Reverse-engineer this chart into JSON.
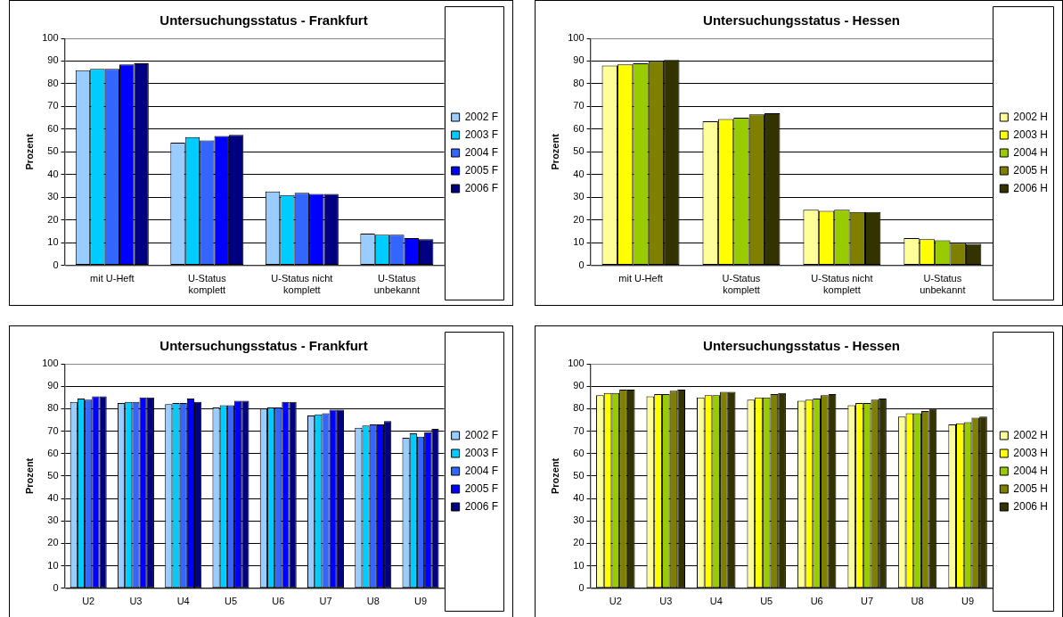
{
  "chart_data": [
    {
      "type": "bar",
      "title": "Untersuchungsstatus - Frankfurt",
      "ylabel": "Prozent",
      "categories": [
        "mit U-Heft",
        "U-Status komplett",
        "U-Status nicht komplett",
        "U-Status unbekannt"
      ],
      "ylim": [
        0,
        100
      ],
      "yticks": [
        0,
        10,
        20,
        30,
        40,
        50,
        60,
        70,
        80,
        90,
        100
      ],
      "grid": "y",
      "legend": "right",
      "series": [
        {
          "name": "2002 F",
          "color": "#99ccff",
          "values": [
            86,
            54,
            32.5,
            14
          ]
        },
        {
          "name": "2003 F",
          "color": "#00ccff",
          "values": [
            86.5,
            56.5,
            31,
            13.5
          ]
        },
        {
          "name": "2004 F",
          "color": "#3366ff",
          "values": [
            86.5,
            55,
            32,
            13.5
          ]
        },
        {
          "name": "2005 F",
          "color": "#0000ff",
          "values": [
            88.5,
            57,
            31.5,
            12
          ]
        },
        {
          "name": "2006 F",
          "color": "#000080",
          "values": [
            89,
            57.5,
            31.5,
            11.5
          ]
        }
      ]
    },
    {
      "type": "bar",
      "title": "Untersuchungsstatus - Hessen",
      "ylabel": "Prozent",
      "categories": [
        "mit U-Heft",
        "U-Status komplett",
        "U-Status nicht komplett",
        "U-Status unbekannt"
      ],
      "ylim": [
        0,
        100
      ],
      "yticks": [
        0,
        10,
        20,
        30,
        40,
        50,
        60,
        70,
        80,
        90,
        100
      ],
      "grid": "y",
      "legend": "right",
      "series": [
        {
          "name": "2002 H",
          "color": "#ffff99",
          "values": [
            88,
            63.5,
            24.5,
            12
          ]
        },
        {
          "name": "2003 H",
          "color": "#ffff00",
          "values": [
            88.5,
            64.5,
            24,
            11.5
          ]
        },
        {
          "name": "2004 H",
          "color": "#99cc00",
          "values": [
            89,
            65,
            24.5,
            11
          ]
        },
        {
          "name": "2005 H",
          "color": "#808000",
          "values": [
            90,
            66.5,
            23.5,
            10
          ]
        },
        {
          "name": "2006 H",
          "color": "#333300",
          "values": [
            90.5,
            67,
            23.5,
            9.5
          ]
        }
      ]
    },
    {
      "type": "bar",
      "title": "Untersuchungsstatus - Frankfurt",
      "ylabel": "Prozent",
      "categories": [
        "U2",
        "U3",
        "U4",
        "U5",
        "U6",
        "U7",
        "U8",
        "U9"
      ],
      "ylim": [
        0,
        100
      ],
      "yticks": [
        0,
        10,
        20,
        30,
        40,
        50,
        60,
        70,
        80,
        90,
        100
      ],
      "grid": "y",
      "legend": "right",
      "series": [
        {
          "name": "2002 F",
          "color": "#99ccff",
          "values": [
            83,
            82.5,
            82,
            80.5,
            80,
            77,
            71.5,
            67
          ]
        },
        {
          "name": "2003 F",
          "color": "#00ccff",
          "values": [
            84.5,
            83,
            82.5,
            81.5,
            80.5,
            77.5,
            72.5,
            69
          ]
        },
        {
          "name": "2004 F",
          "color": "#3366ff",
          "values": [
            84,
            83,
            82.5,
            81.5,
            80.5,
            78,
            73,
            67.5
          ]
        },
        {
          "name": "2005 F",
          "color": "#0000ff",
          "values": [
            85.5,
            85,
            84.5,
            83.5,
            83,
            79.5,
            73,
            69.5
          ]
        },
        {
          "name": "2006 F",
          "color": "#000080",
          "values": [
            85.5,
            85,
            83,
            83.5,
            83,
            79.5,
            74.5,
            71
          ]
        }
      ]
    },
    {
      "type": "bar",
      "title": "Untersuchungsstatus - Hessen",
      "ylabel": "Prozent",
      "categories": [
        "U2",
        "U3",
        "U4",
        "U5",
        "U6",
        "U7",
        "U8",
        "U9"
      ],
      "ylim": [
        0,
        100
      ],
      "yticks": [
        0,
        10,
        20,
        30,
        40,
        50,
        60,
        70,
        80,
        90,
        100
      ],
      "grid": "y",
      "legend": "right",
      "series": [
        {
          "name": "2002 H",
          "color": "#ffff99",
          "values": [
            86,
            85.5,
            85,
            84,
            83.5,
            81.5,
            76.5,
            73
          ]
        },
        {
          "name": "2003 H",
          "color": "#ffff00",
          "values": [
            87,
            86.5,
            86,
            85,
            84,
            82.5,
            78,
            73.5
          ]
        },
        {
          "name": "2004 H",
          "color": "#99cc00",
          "values": [
            87,
            86.5,
            86,
            85,
            84.5,
            82.5,
            78,
            74
          ]
        },
        {
          "name": "2005 H",
          "color": "#808000",
          "values": [
            88.5,
            88,
            87.5,
            86.5,
            86,
            84,
            79,
            76
          ]
        },
        {
          "name": "2006 H",
          "color": "#333300",
          "values": [
            88.5,
            88.5,
            87.5,
            87,
            86.5,
            84.5,
            80,
            76.5
          ]
        }
      ]
    }
  ]
}
